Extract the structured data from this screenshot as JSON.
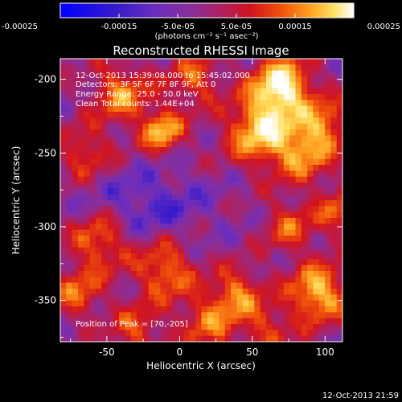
{
  "chart_data": {
    "type": "heatmap",
    "title": "Reconstructed RHESSI Image",
    "xlabel": "Heliocentric X (arcsec)",
    "ylabel": "Heliocentric Y (arcsec)",
    "xlim": [
      -82,
      112
    ],
    "ylim": [
      -378,
      -186
    ],
    "x_ticks": [
      -50,
      0,
      50,
      100
    ],
    "x_tick_labels": [
      "-50",
      "0",
      "50",
      "100"
    ],
    "y_ticks": [
      -200,
      -250,
      -300,
      -350
    ],
    "y_tick_labels": [
      "-200",
      "-250",
      "-300",
      "-350"
    ],
    "colorbar": {
      "range": [
        -0.00025,
        0.00025
      ],
      "tick_values": [
        -0.00025,
        -0.00015,
        -5e-05,
        5e-05,
        0.00015,
        0.00025
      ],
      "tick_labels": [
        "-0.00025",
        "-0.00015",
        "-5.0e-05",
        "5.0e-05",
        "0.00015",
        "0.00025"
      ],
      "unit_label": "(photons cm⁻² s⁻¹ asec⁻²)",
      "colors": [
        "#0000ff",
        "#3a1cc8",
        "#6a2dbf",
        "#8a2e9a",
        "#b0205e",
        "#d2141e",
        "#f0500a",
        "#ffa020",
        "#ffe060",
        "#ffffff"
      ]
    },
    "annotations": {
      "time_range": "12-Oct-2013 15:39:08.000 to 15:45:02.000",
      "detectors": "Detectors: 3F 5F 6F 7F 8F 9F, Att 0",
      "energy_range": "Energy Range: 25.0 - 50.0 keV",
      "method": "Clean     Total counts: 1.44E+04",
      "peak": "Position of Peak = [70,-205]"
    },
    "peak_position": [
      70,
      -205
    ],
    "footer_timestamp": "12-Oct-2013 21:59"
  }
}
